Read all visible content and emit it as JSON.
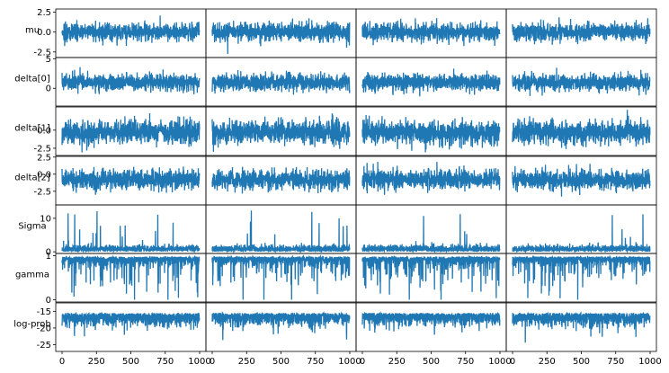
{
  "chart_data": {
    "type": "line",
    "description_layout": "grid",
    "rows": 7,
    "cols": 4,
    "series_color": "#1f77b4",
    "x_range": [
      0,
      1000
    ],
    "x_ticks": [
      0,
      250,
      500,
      750,
      1000
    ],
    "x_tick_labels": [
      "0",
      "250",
      "500",
      "750",
      "1000"
    ],
    "row_labels": [
      "mu",
      "delta[0]",
      "delta[1]",
      "delta[2]",
      "Sigma",
      "gamma",
      "log-prob"
    ],
    "panels": [
      {
        "name": "mu",
        "ylim": [
          -3.2,
          2.9
        ],
        "yticks": [
          -2.5,
          0.0,
          2.5
        ],
        "ytick_labels": [
          "-2.5",
          "0.0",
          "2.5"
        ],
        "center": 0.0,
        "spread": 0.55,
        "max": 2.5,
        "min": -3.0
      },
      {
        "name": "delta[0]",
        "ylim": [
          -3.0,
          5.2
        ],
        "yticks": [
          0,
          5
        ],
        "ytick_labels": [
          "0",
          "5"
        ],
        "center": 1.0,
        "spread": 0.7,
        "max": 4.3,
        "min": -1.5
      },
      {
        "name": "delta[1]",
        "ylim": [
          -3.5,
          3.2
        ],
        "yticks": [
          -2.5,
          0.0
        ],
        "ytick_labels": [
          "-2.5",
          "0.0"
        ],
        "center": -0.3,
        "spread": 0.8,
        "max": 3.0,
        "min": -3.3
      },
      {
        "name": "delta[2]",
        "ylim": [
          -4.5,
          2.6
        ],
        "yticks": [
          -2.5,
          0.0,
          2.5
        ],
        "ytick_labels": [
          "-2.5",
          "0.0",
          "2.5"
        ],
        "center": -0.8,
        "spread": 0.7,
        "max": 1.8,
        "min": -3.8
      },
      {
        "name": "Sigma",
        "ylim": [
          -0.5,
          14.0
        ],
        "yticks": [
          0,
          10
        ],
        "ytick_labels": [
          "0",
          "10"
        ],
        "center": 0.8,
        "spread": 0.6,
        "max": 13.0,
        "min": 0.05
      },
      {
        "name": "gamma",
        "ylim": [
          -0.05,
          1.05
        ],
        "yticks": [
          0,
          1
        ],
        "ytick_labels": [
          "0",
          "1"
        ],
        "center": 0.88,
        "spread": 0.14,
        "max": 1.0,
        "min": 0.0
      },
      {
        "name": "log-prob",
        "ylim": [
          -27.0,
          -12.5
        ],
        "yticks": [
          -25,
          -20,
          -15
        ],
        "ytick_labels": [
          "-25",
          "-20",
          "-15"
        ],
        "center": -16.5,
        "spread": 1.8,
        "max": -13.5,
        "min": -26.0
      }
    ],
    "n_samples": 1000,
    "chains": 4,
    "title": "",
    "xlabel": "",
    "ylabel": ""
  }
}
